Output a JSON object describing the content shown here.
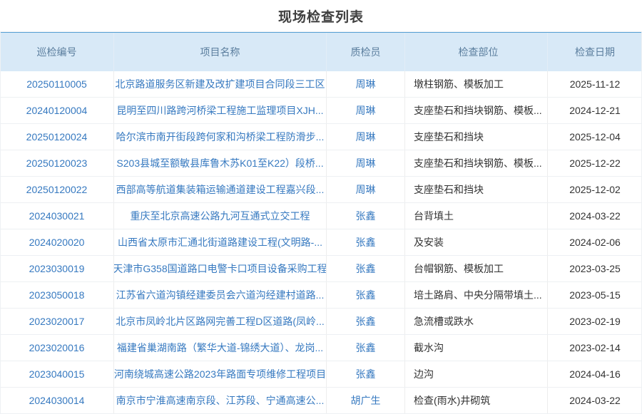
{
  "page": {
    "title": "现场检查列表"
  },
  "colors": {
    "accent_link": "#3679c0",
    "header_background": "#d8e9f7",
    "header_top_border": "#57a0d4",
    "header_text": "#5b7e9e",
    "body_text": "#333333"
  },
  "table": {
    "columns": [
      {
        "key": "id",
        "label": "巡检编号",
        "link": true
      },
      {
        "key": "project",
        "label": "项目名称",
        "link": true
      },
      {
        "key": "inspector",
        "label": "质检员",
        "link": true
      },
      {
        "key": "location",
        "label": "检查部位",
        "link": false
      },
      {
        "key": "date",
        "label": "检查日期",
        "link": false
      }
    ],
    "rows": [
      {
        "id": "20250110005",
        "project": "北京路道服务区新建及改扩建项目合同段三工区",
        "inspector": "周琳",
        "location": "墩柱钢筋、模板加工",
        "date": "2025-11-12"
      },
      {
        "id": "20240120004",
        "project": "昆明至四川路跨河桥梁工程施工监理项目XJH...",
        "inspector": "周琳",
        "location": "支座垫石和挡块钢筋、模板...",
        "date": "2024-12-21"
      },
      {
        "id": "20250120024",
        "project": "哈尔滨市南开街段跨何家和沟桥梁工程防滑步...",
        "inspector": "周琳",
        "location": "支座垫石和挡块",
        "date": "2025-12-04"
      },
      {
        "id": "20250120023",
        "project": "S203县城至额敏县库鲁木苏K01至K22）段桥...",
        "inspector": "周琳",
        "location": "支座垫石和挡块钢筋、模板...",
        "date": "2025-12-22"
      },
      {
        "id": "20250120022",
        "project": "西部高等航道集装箱运输通道建设工程嘉兴段...",
        "inspector": "周琳",
        "location": "支座垫石和挡块",
        "date": "2025-12-02"
      },
      {
        "id": "2024030021",
        "project": "重庆至北京高速公路九河互通式立交工程",
        "inspector": "张鑫",
        "location": "台背填土",
        "date": "2024-03-22"
      },
      {
        "id": "2024020020",
        "project": "山西省太原市汇通北街道路建设工程(文明路-...",
        "inspector": "张鑫",
        "location": "及安装",
        "date": "2024-02-06"
      },
      {
        "id": "2023030019",
        "project": "天津市G358国道路口电警卡口项目设备采购工程",
        "inspector": "张鑫",
        "location": "台帽钢筋、模板加工",
        "date": "2023-03-25"
      },
      {
        "id": "2023050018",
        "project": "江苏省六道沟镇经建委员会六道沟经建村道路...",
        "inspector": "张鑫",
        "location": "培土路肩、中央分隔带填土...",
        "date": "2023-05-15"
      },
      {
        "id": "2023020017",
        "project": "北京市凤岭北片区路网完善工程D区道路(凤岭...",
        "inspector": "张鑫",
        "location": "急流槽或跌水",
        "date": "2023-02-19"
      },
      {
        "id": "2023020016",
        "project": "福建省巢湖南路（繁华大道-锦绣大道）、龙岗...",
        "inspector": "张鑫",
        "location": "截水沟",
        "date": "2023-02-14"
      },
      {
        "id": "2023040015",
        "project": "河南绕城高速公路2023年路面专项维修工程项目",
        "inspector": "张鑫",
        "location": "边沟",
        "date": "2024-04-16"
      },
      {
        "id": "2024030014",
        "project": "南京市宁淮高速南京段、江苏段、宁通高速公...",
        "inspector": "胡广生",
        "location": "检查(雨水)井砌筑",
        "date": "2024-03-22"
      }
    ]
  }
}
